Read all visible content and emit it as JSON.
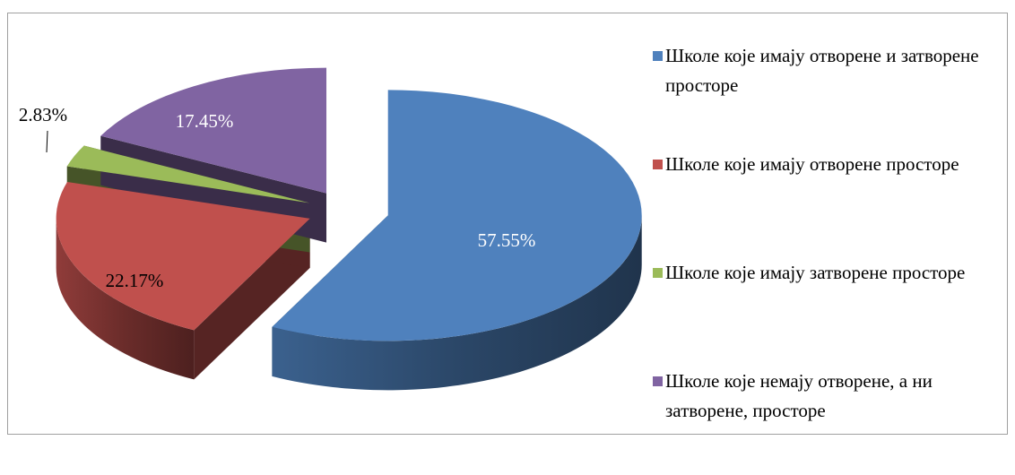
{
  "chart_data": {
    "type": "pie",
    "categories": [
      "Школе које имају отворене и затворене просторе",
      "Школе које имају отворене просторе",
      "Школе које имају затворене просторе",
      "Школе које немају отворене, а ни затворене, просторе"
    ],
    "values": [
      57.55,
      22.17,
      2.83,
      17.45
    ],
    "value_labels": [
      "57.55%",
      "22.17%",
      "2.83%",
      "17.45%"
    ],
    "colors": [
      "#4f81bd",
      "#c0504d",
      "#9bbb59",
      "#8064a2"
    ],
    "legend": "right"
  }
}
